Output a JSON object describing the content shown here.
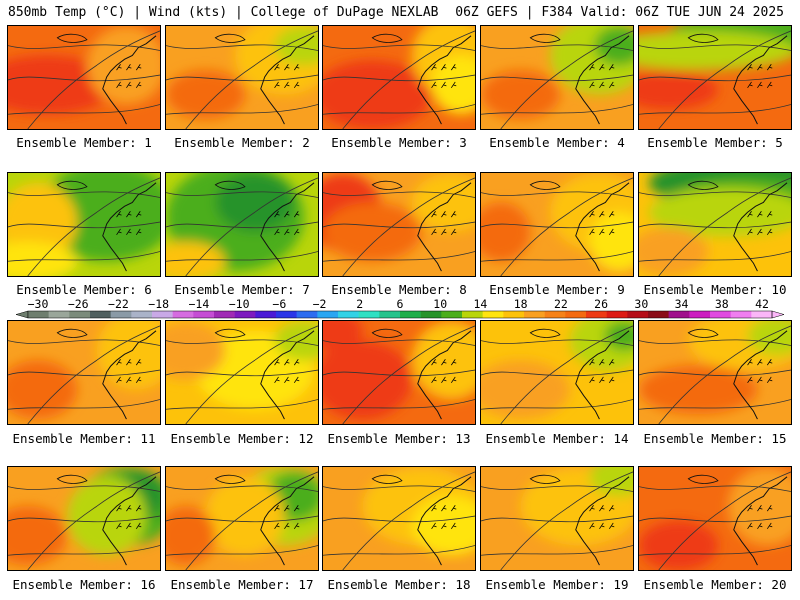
{
  "header": {
    "left_title": "850mb Temp (°C) | Wind (kts) | College of DuPage NEXLAB",
    "right_title": "06Z GEFS | F384 Valid: 06Z TUE JUN 24 2025"
  },
  "panels": [
    {
      "label": "Ensemble Member: 1",
      "base": "#f46a10",
      "blobs": [
        [
          "#ee3a14",
          40,
          60,
          70,
          30
        ],
        [
          "#f9a020",
          120,
          40,
          40,
          40
        ]
      ]
    },
    {
      "label": "Ensemble Member: 2",
      "base": "#f9a020",
      "blobs": [
        [
          "#fdc20a",
          120,
          30,
          50,
          40
        ],
        [
          "#f46a10",
          40,
          70,
          40,
          25
        ],
        [
          "#b9d50a",
          140,
          20,
          30,
          20
        ]
      ]
    },
    {
      "label": "Ensemble Member: 3",
      "base": "#f46a10",
      "blobs": [
        [
          "#ee3a14",
          50,
          70,
          60,
          35
        ],
        [
          "#fdc20a",
          130,
          30,
          40,
          40
        ],
        [
          "#ffe40f",
          140,
          60,
          30,
          30
        ]
      ]
    },
    {
      "label": "Ensemble Member: 4",
      "base": "#f9a020",
      "blobs": [
        [
          "#b9d50a",
          120,
          30,
          50,
          40
        ],
        [
          "#4cae1c",
          140,
          20,
          25,
          20
        ],
        [
          "#f46a10",
          40,
          70,
          40,
          25
        ]
      ]
    },
    {
      "label": "Ensemble Member: 5",
      "base": "#f46a10",
      "blobs": [
        [
          "#4cae1c",
          110,
          10,
          80,
          25
        ],
        [
          "#b9d50a",
          60,
          25,
          100,
          20
        ],
        [
          "#ee3a14",
          30,
          65,
          50,
          20
        ]
      ]
    },
    {
      "label": "Ensemble Member: 6",
      "base": "#b9d50a",
      "blobs": [
        [
          "#4cae1c",
          100,
          40,
          70,
          50
        ],
        [
          "#fdc20a",
          30,
          50,
          40,
          40
        ],
        [
          "#ffe40f",
          20,
          90,
          50,
          20
        ]
      ]
    },
    {
      "label": "Ensemble Member: 7",
      "base": "#b9d50a",
      "blobs": [
        [
          "#4cae1c",
          70,
          45,
          70,
          55
        ],
        [
          "#27932a",
          90,
          30,
          40,
          30
        ],
        [
          "#fdc20a",
          20,
          90,
          40,
          20
        ]
      ]
    },
    {
      "label": "Ensemble Member: 8",
      "base": "#f9a020",
      "blobs": [
        [
          "#ee3a14",
          20,
          40,
          40,
          40
        ],
        [
          "#f46a10",
          50,
          60,
          50,
          30
        ],
        [
          "#fdc20a",
          130,
          30,
          40,
          30
        ]
      ]
    },
    {
      "label": "Ensemble Member: 9",
      "base": "#f9a020",
      "blobs": [
        [
          "#fdc20a",
          120,
          40,
          50,
          40
        ],
        [
          "#f46a10",
          20,
          60,
          30,
          30
        ],
        [
          "#ffe40f",
          140,
          70,
          30,
          30
        ]
      ]
    },
    {
      "label": "Ensemble Member: 10",
      "base": "#fdc20a",
      "blobs": [
        [
          "#27932a",
          100,
          10,
          90,
          25
        ],
        [
          "#4cae1c",
          110,
          25,
          70,
          20
        ],
        [
          "#b9d50a",
          90,
          40,
          80,
          25
        ],
        [
          "#f9a020",
          30,
          80,
          40,
          25
        ]
      ]
    },
    {
      "label": "Ensemble Member: 11",
      "base": "#f9a020",
      "blobs": [
        [
          "#fdc20a",
          130,
          30,
          40,
          40
        ],
        [
          "#f46a10",
          30,
          70,
          40,
          30
        ]
      ]
    },
    {
      "label": "Ensemble Member: 12",
      "base": "#fdc20a",
      "blobs": [
        [
          "#ffe40f",
          90,
          50,
          60,
          40
        ],
        [
          "#b9d50a",
          140,
          20,
          30,
          20
        ],
        [
          "#f9a020",
          20,
          30,
          40,
          30
        ]
      ]
    },
    {
      "label": "Ensemble Member: 13",
      "base": "#f46a10",
      "blobs": [
        [
          "#ee3a14",
          40,
          60,
          50,
          40
        ],
        [
          "#ee3a14",
          10,
          10,
          30,
          20
        ],
        [
          "#fdc20a",
          130,
          40,
          40,
          40
        ]
      ]
    },
    {
      "label": "Ensemble Member: 14",
      "base": "#fdc20a",
      "blobs": [
        [
          "#b9d50a",
          130,
          20,
          40,
          30
        ],
        [
          "#4cae1c",
          145,
          15,
          20,
          15
        ],
        [
          "#f9a020",
          40,
          70,
          50,
          30
        ]
      ]
    },
    {
      "label": "Ensemble Member: 15",
      "base": "#f9a020",
      "blobs": [
        [
          "#fdc20a",
          110,
          20,
          60,
          30
        ],
        [
          "#b9d50a",
          140,
          15,
          30,
          20
        ],
        [
          "#f46a10",
          60,
          70,
          60,
          25
        ]
      ]
    },
    {
      "label": "Ensemble Member: 16",
      "base": "#f9a020",
      "blobs": [
        [
          "#4cae1c",
          120,
          40,
          50,
          40
        ],
        [
          "#27932a",
          130,
          30,
          30,
          25
        ],
        [
          "#b9d50a",
          100,
          50,
          40,
          40
        ],
        [
          "#f46a10",
          20,
          70,
          40,
          30
        ]
      ]
    },
    {
      "label": "Ensemble Member: 17",
      "base": "#f9a020",
      "blobs": [
        [
          "#b9d50a",
          120,
          40,
          50,
          40
        ],
        [
          "#4cae1c",
          130,
          30,
          30,
          25
        ],
        [
          "#fdc20a",
          80,
          50,
          40,
          40
        ],
        [
          "#f46a10",
          20,
          70,
          30,
          30
        ]
      ]
    },
    {
      "label": "Ensemble Member: 18",
      "base": "#f9a020",
      "blobs": [
        [
          "#fdc20a",
          100,
          40,
          60,
          40
        ],
        [
          "#ffe40f",
          130,
          60,
          40,
          30
        ]
      ]
    },
    {
      "label": "Ensemble Member: 19",
      "base": "#f9a020",
      "blobs": [
        [
          "#fdc20a",
          100,
          40,
          60,
          40
        ],
        [
          "#b9d50a",
          140,
          10,
          30,
          20
        ]
      ]
    },
    {
      "label": "Ensemble Member: 20",
      "base": "#f46a10",
      "blobs": [
        [
          "#f9a020",
          130,
          40,
          40,
          40
        ],
        [
          "#ee3a14",
          40,
          80,
          40,
          25
        ]
      ]
    }
  ],
  "colorbar": {
    "tick_labels": [
      "-30",
      "-26",
      "-22",
      "-18",
      "-14",
      "-10",
      "-6",
      "-2",
      "2",
      "6",
      "10",
      "14",
      "18",
      "22",
      "26",
      "30",
      "34",
      "38",
      "42"
    ],
    "colors": [
      "#6e7e6e",
      "#9aa69a",
      "#7b8b7b",
      "#4f5f5f",
      "#8a9aa6",
      "#aab3c8",
      "#c9a9e6",
      "#d56ce0",
      "#c54dd4",
      "#a02bb5",
      "#7d1bbf",
      "#4b1bd6",
      "#2b36e8",
      "#2d6cf0",
      "#2aa6f2",
      "#32d2e6",
      "#2fe0c3",
      "#25c38c",
      "#1fae4a",
      "#27932a",
      "#4cae1c",
      "#b9d50a",
      "#ffe40f",
      "#fdc20a",
      "#f9a020",
      "#f68218",
      "#f46a10",
      "#ee3a14",
      "#dd1a14",
      "#b50d18",
      "#8a0c18",
      "#a0108c",
      "#cc1ec0",
      "#e04ae0",
      "#f07ef0",
      "#fbb6f8"
    ]
  }
}
